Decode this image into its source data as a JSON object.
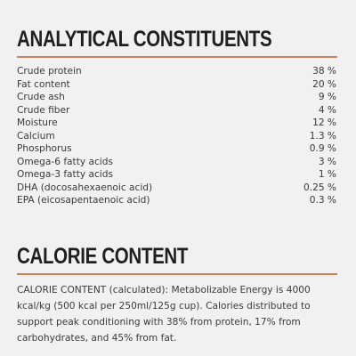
{
  "analytical": {
    "title": "ANALYTICAL CONSTITUENTS",
    "rows": [
      {
        "label": "Crude protein",
        "value": "38 %"
      },
      {
        "label": "Fat content",
        "value": "20 %"
      },
      {
        "label": "Crude ash",
        "value": "9 %"
      },
      {
        "label": "Crude fiber",
        "value": "4 %"
      },
      {
        "label": "Moisture",
        "value": "12 %"
      },
      {
        "label": "Calcium",
        "value": "1.3 %"
      },
      {
        "label": "Phosphorus",
        "value": "0.9 %"
      },
      {
        "label": "Omega-6 fatty acids",
        "value": "3 %"
      },
      {
        "label": "Omega-3 fatty acids",
        "value": "1 %"
      },
      {
        "label": "DHA (docosahexaenoic acid)",
        "value": "0.25 %"
      },
      {
        "label": "EPA (eicosapentaenoic acid)",
        "value": "0.3 %"
      }
    ]
  },
  "calorie": {
    "title": "CALORIE CONTENT",
    "text": "CALORIE CONTENT (calculated): Metabolizable Energy is 4000 kcal/kg (500 kcal per 250ml/125g cup). Calories distributed to support peak conditioning with 38% from protein, 17% from carbohydrates, and 45% from fat."
  },
  "colors": {
    "background": "#f1f1f1",
    "heading": "#1f1f1f",
    "rule": "#c9825d",
    "text": "#3a3a3a"
  }
}
